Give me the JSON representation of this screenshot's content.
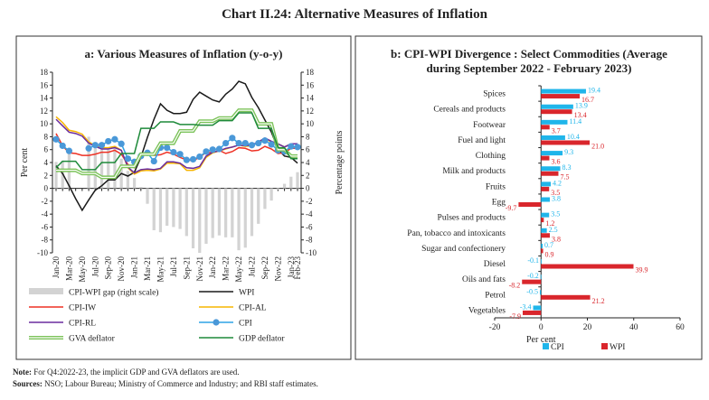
{
  "title": "Chart II.24: Alternative Measures of Inflation",
  "notes": {
    "note_label": "Note:",
    "note_text": " For Q4:2022-23, the implicit GDP and GVA deflators are used.",
    "sources_label": "Sources:",
    "sources_text": " NSO; Labour Bureau; Ministry of Commerce and Industry; and RBI staff estimates."
  },
  "chart_data": [
    {
      "type": "line",
      "title": "a: Various Measures of Inflation (y-o-y)",
      "ylabel": "Per cent",
      "y2label": "Percentage points",
      "ylim": [
        -10,
        18
      ],
      "y2lim": [
        -10,
        18
      ],
      "yticks": [
        "-10",
        "-8",
        "-6",
        "-4",
        "-2",
        "0",
        "2",
        "4",
        "6",
        "8",
        "10",
        "12",
        "14",
        "16",
        "18"
      ],
      "x": [
        "Jan-20",
        "Feb-20",
        "Mar-20",
        "Apr-20",
        "May-20",
        "Jun-20",
        "Jul-20",
        "Aug-20",
        "Sep-20",
        "Oct-20",
        "Nov-20",
        "Dec-20",
        "Jan-21",
        "Feb-21",
        "Mar-21",
        "Apr-21",
        "May-21",
        "Jun-21",
        "Jul-21",
        "Aug-21",
        "Sep-21",
        "Oct-21",
        "Nov-21",
        "Dec-21",
        "Jan-22",
        "Feb-22",
        "Mar-22",
        "Apr-22",
        "May-22",
        "Jun-22",
        "Jul-22",
        "Aug-22",
        "Sep-22",
        "Oct-22",
        "Nov-22",
        "Dec-22",
        "Jan-23",
        "Feb-23"
      ],
      "xticks": [
        "Jan-20",
        "Mar-20",
        "May-20",
        "Jul-20",
        "Sep-20",
        "Nov-20",
        "Jan-21",
        "Mar-21",
        "May-21",
        "Jul-21",
        "Sep-21",
        "Nov-21",
        "Jan-22",
        "Mar-22",
        "May-22",
        "Jul-22",
        "Sep-22",
        "Nov-22",
        "Jan-23",
        "Feb-23"
      ],
      "grid": false,
      "legend_position": "bottom",
      "series": [
        {
          "name": "CPI-WPI gap (right scale)",
          "kind": "bar",
          "axis": "right",
          "color": "#d3d3d3",
          "values": [
            4.1,
            4.3,
            5.5,
            null,
            null,
            8.0,
            7.0,
            6.3,
            6.0,
            6.3,
            4.6,
            2.7,
            1.6,
            0.2,
            -2.4,
            -6.5,
            -6.8,
            -5.8,
            -6.0,
            -6.3,
            -7.4,
            -9.3,
            -10.0,
            -8.6,
            -7.7,
            -7.3,
            -7.6,
            -7.6,
            -9.6,
            -9.2,
            -7.4,
            -5.5,
            -3.2,
            -1.9,
            -0.2,
            0.7,
            1.8,
            2.5
          ]
        },
        {
          "name": "WPI",
          "kind": "line",
          "color": "#1a1a1a",
          "values": [
            3.5,
            2.3,
            0.4,
            -1.6,
            -3.4,
            -1.8,
            -0.3,
            0.4,
            1.3,
            1.3,
            2.3,
            1.9,
            2.5,
            4.8,
            7.9,
            10.7,
            13.1,
            12.1,
            11.6,
            11.6,
            11.8,
            13.8,
            14.9,
            14.3,
            13.7,
            13.4,
            14.6,
            15.4,
            16.6,
            16.2,
            14.1,
            12.5,
            10.6,
            8.7,
            6.1,
            5.0,
            4.8,
            3.9
          ]
        },
        {
          "name": "CPI-IW",
          "kind": "line",
          "color": "#ee3124",
          "values": [
            8.5,
            6.6,
            5.5,
            5.4,
            5.1,
            5.1,
            5.3,
            5.6,
            5.6,
            5.9,
            5.3,
            3.7,
            3.2,
            4.9,
            5.6,
            5.1,
            5.2,
            5.6,
            5.3,
            4.8,
            4.4,
            4.3,
            4.8,
            5.6,
            5.5,
            5.9,
            5.4,
            5.7,
            6.3,
            6.2,
            5.8,
            5.9,
            6.5,
            6.1,
            5.4,
            5.5,
            6.2,
            6.2
          ]
        },
        {
          "name": "CPI-AL",
          "kind": "line",
          "color": "#f7b500",
          "values": [
            11.1,
            10.2,
            9.0,
            8.8,
            8.4,
            7.2,
            6.6,
            6.3,
            6.3,
            6.5,
            5.9,
            3.2,
            2.2,
            2.7,
            2.8,
            2.7,
            3.0,
            3.9,
            3.9,
            3.8,
            2.8,
            2.8,
            3.2,
            4.8,
            5.5,
            5.8,
            6.1,
            6.4,
            6.7,
            6.5,
            6.6,
            7.1,
            7.7,
            7.2,
            6.9,
            6.4,
            6.9,
            6.9
          ]
        },
        {
          "name": "CPI-RL",
          "kind": "line",
          "color": "#6a2c9e",
          "values": [
            10.7,
            9.7,
            8.7,
            8.5,
            8.1,
            7.0,
            6.5,
            6.1,
            6.1,
            6.3,
            5.9,
            3.3,
            2.4,
            2.9,
            3.0,
            2.9,
            3.1,
            4.1,
            4.1,
            3.9,
            3.2,
            3.1,
            3.4,
            5.0,
            5.6,
            5.8,
            6.2,
            6.4,
            6.7,
            6.6,
            6.7,
            7.2,
            7.8,
            7.3,
            6.9,
            6.4,
            6.9,
            6.9
          ]
        },
        {
          "name": "CPI",
          "kind": "line-marker",
          "color": "#2fa3e6",
          "marker_color": "#4a98d8",
          "values": [
            7.6,
            6.6,
            5.8,
            null,
            null,
            6.2,
            6.7,
            6.7,
            7.3,
            7.6,
            6.9,
            4.6,
            4.1,
            5.0,
            5.5,
            4.2,
            6.3,
            6.3,
            5.6,
            5.3,
            4.4,
            4.5,
            4.9,
            5.7,
            6.0,
            6.1,
            7.0,
            7.8,
            7.0,
            7.0,
            6.7,
            7.0,
            7.4,
            6.8,
            5.9,
            5.7,
            6.5,
            6.4
          ]
        },
        {
          "name": "GVA deflator",
          "kind": "line-double",
          "color": "#7cc35a",
          "values": [
            2.8,
            2.8,
            2.8,
            2.8,
            2.3,
            2.3,
            2.3,
            1.7,
            1.7,
            1.7,
            3.4,
            3.4,
            3.4,
            5.3,
            5.3,
            5.3,
            7.0,
            7.0,
            7.0,
            8.9,
            8.9,
            8.9,
            10.4,
            10.4,
            10.4,
            10.9,
            10.9,
            10.9,
            12.1,
            12.1,
            12.1,
            10.0,
            10.0,
            10.0,
            6.0,
            6.0,
            5.0,
            5.0
          ]
        },
        {
          "name": "GDP deflator",
          "kind": "line",
          "color": "#1e8a3a",
          "values": [
            3.2,
            4.2,
            4.2,
            4.2,
            2.9,
            2.9,
            2.9,
            4.0,
            4.0,
            4.0,
            5.4,
            5.4,
            5.4,
            9.3,
            9.3,
            9.3,
            10.3,
            10.3,
            10.3,
            9.9,
            9.9,
            9.9,
            9.8,
            9.8,
            9.8,
            10.5,
            10.5,
            10.5,
            11.7,
            11.7,
            11.7,
            9.3,
            9.3,
            9.3,
            6.3,
            6.3,
            4.6,
            4.6
          ]
        }
      ]
    },
    {
      "type": "bar",
      "orientation": "horizontal",
      "title": "b: CPI-WPI Divergence : Select Commodities (Average during September 2022 - February 2023)",
      "title_line1": "b: CPI-WPI Divergence : Select Commodities (Average",
      "title_line2": "during September 2022 - February 2023)",
      "xlabel": "Per cent",
      "xlim": [
        -20,
        60
      ],
      "xticks": [
        "-20",
        "0",
        "20",
        "40",
        "60"
      ],
      "legend_position": "bottom",
      "categories": [
        "Spices",
        "Cereals and products",
        "Footwear",
        "Fuel and light",
        "Clothing",
        "Milk and products",
        "Fruits",
        "Egg",
        "Pulses and products",
        "Pan, tobacco and intoxicants",
        "Sugar and confectionery",
        "Diesel",
        "Oils and fats",
        "Petrol",
        "Vegetables"
      ],
      "series": [
        {
          "name": "CPI",
          "color": "#1fb5ea",
          "values": [
            19.4,
            13.9,
            11.4,
            10.4,
            9.3,
            8.3,
            4.2,
            3.8,
            3.5,
            2.5,
            0.7,
            -0.1,
            -0.2,
            -0.5,
            -3.4
          ]
        },
        {
          "name": "WPI",
          "color": "#d9262c",
          "values": [
            16.7,
            13.4,
            3.7,
            21.0,
            3.6,
            7.5,
            3.5,
            -9.7,
            1.2,
            3.8,
            0.9,
            39.9,
            -8.2,
            21.2,
            -7.9
          ]
        }
      ]
    }
  ]
}
